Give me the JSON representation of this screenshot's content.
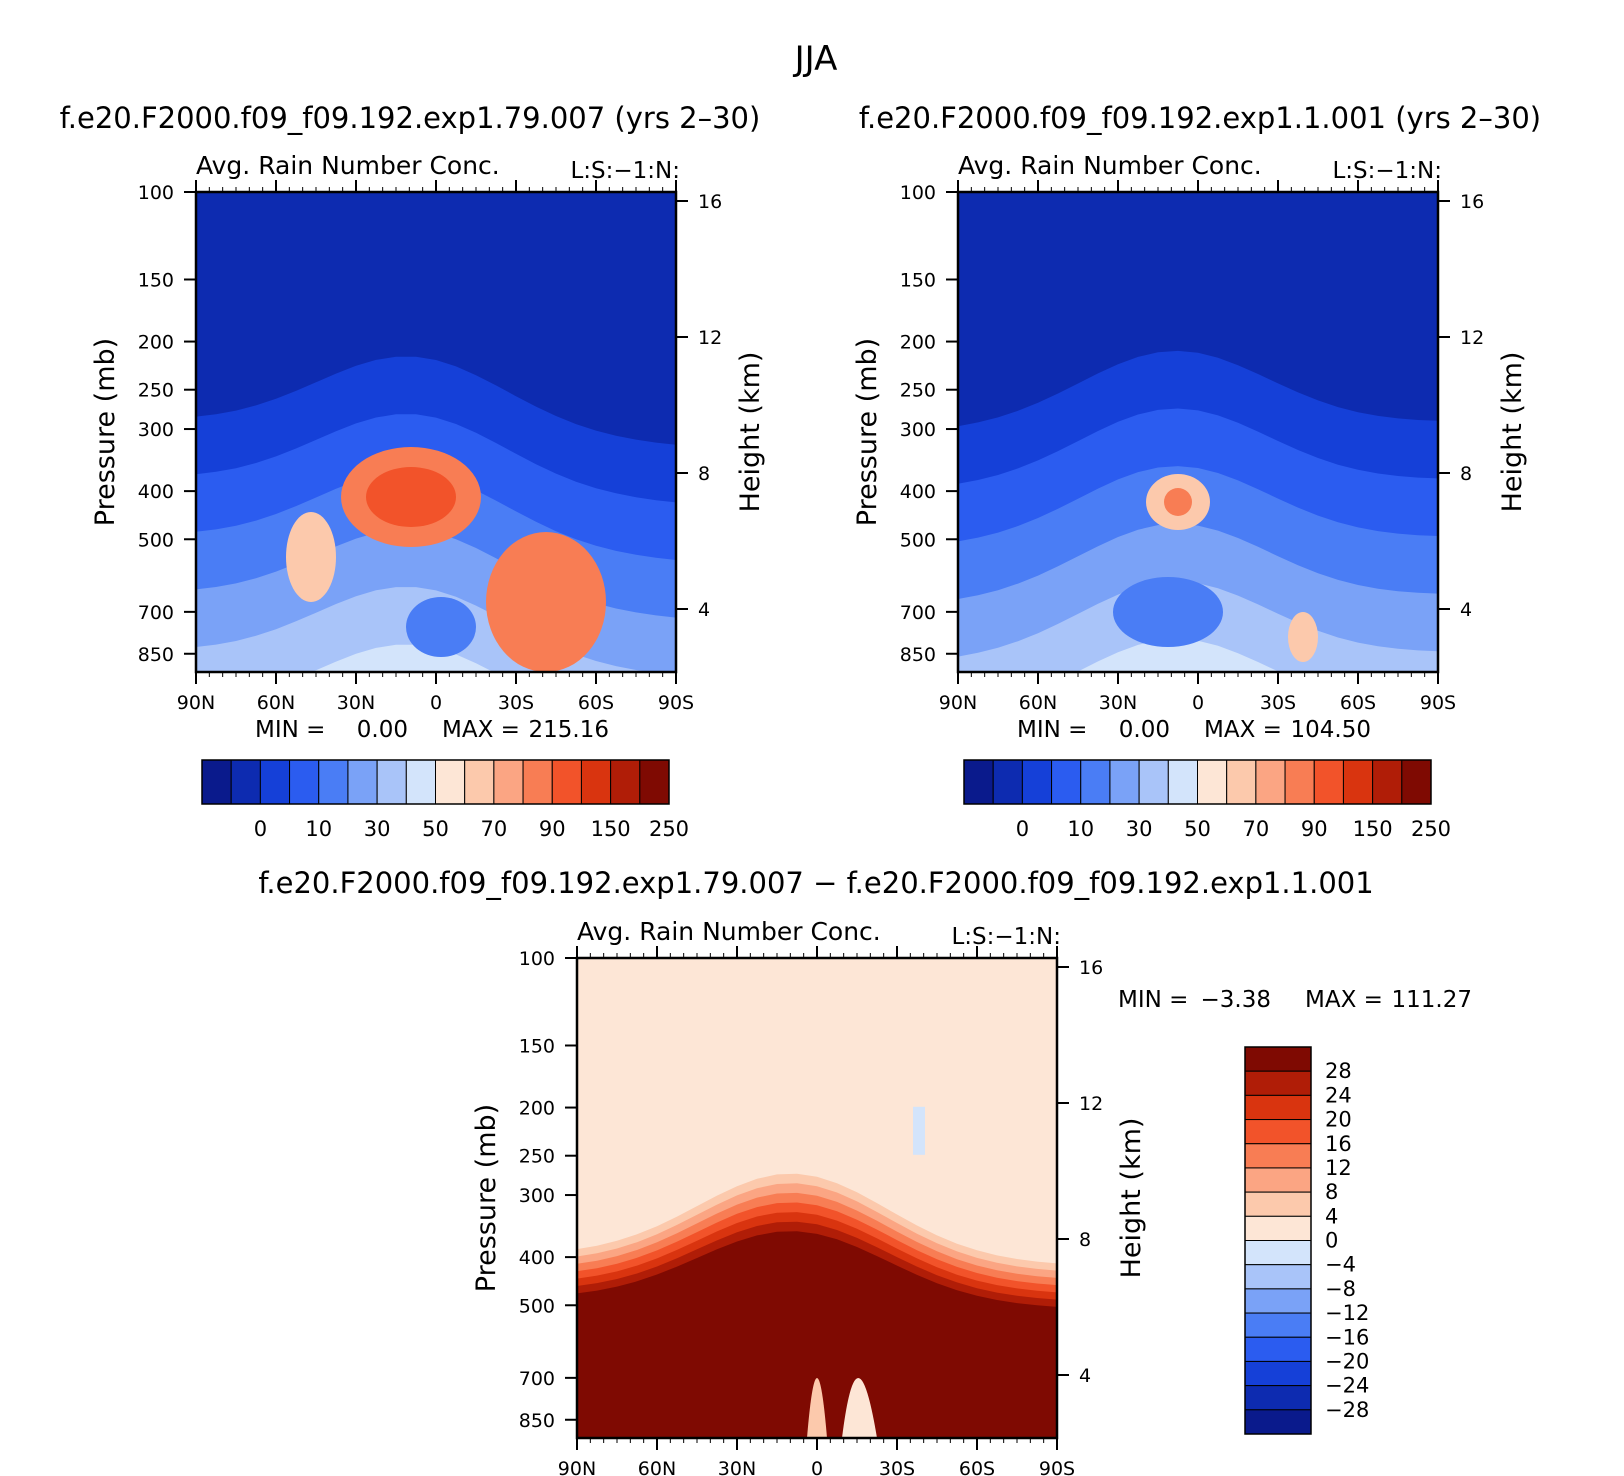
{
  "figure": {
    "title": "JJA"
  },
  "chart_data": [
    {
      "id": "left",
      "type": "heatmap",
      "case_title": "f.e20.F2000.f09_f09.192.exp1.79.007 (yrs 2–30)",
      "left_string": "Avg. Rain Number Conc.",
      "right_string": "L:S:−1:N:",
      "ylabel": "Pressure (mb)",
      "y2label": "Height (km)",
      "xticks": [
        "90N",
        "60N",
        "30N",
        "0",
        "30S",
        "60S",
        "90S"
      ],
      "yticks": [
        100,
        150,
        200,
        250,
        300,
        400,
        500,
        700,
        850
      ],
      "y2ticks": [
        16,
        12,
        8,
        4
      ],
      "min_label": "MIN =",
      "min_value": "0.00",
      "max_label": "MAX =",
      "max_value": "215.16",
      "colorbar": {
        "colors": [
          "#0a1a8c",
          "#0d2bb0",
          "#1540d8",
          "#2b5cf0",
          "#4a7df5",
          "#7aa2f7",
          "#a9c4f9",
          "#d3e4fb",
          "#fde6d6",
          "#fcc9ac",
          "#fba583",
          "#f87d54",
          "#f2532a",
          "#d9340f",
          "#b01d07",
          "#7f0a02"
        ],
        "labels": [
          "0",
          "10",
          "30",
          "50",
          "70",
          "90",
          "150",
          "250"
        ]
      }
    },
    {
      "id": "right",
      "type": "heatmap",
      "case_title": "f.e20.F2000.f09_f09.192.exp1.1.001 (yrs 2–30)",
      "left_string": "Avg. Rain Number Conc.",
      "right_string": "L:S:−1:N:",
      "ylabel": "Pressure (mb)",
      "y2label": "Height (km)",
      "xticks": [
        "90N",
        "60N",
        "30N",
        "0",
        "30S",
        "60S",
        "90S"
      ],
      "yticks": [
        100,
        150,
        200,
        250,
        300,
        400,
        500,
        700,
        850
      ],
      "y2ticks": [
        16,
        12,
        8,
        4
      ],
      "min_label": "MIN =",
      "min_value": "0.00",
      "max_label": "MAX =",
      "max_value": "104.50",
      "colorbar": {
        "colors": [
          "#0a1a8c",
          "#0d2bb0",
          "#1540d8",
          "#2b5cf0",
          "#4a7df5",
          "#7aa2f7",
          "#a9c4f9",
          "#d3e4fb",
          "#fde6d6",
          "#fcc9ac",
          "#fba583",
          "#f87d54",
          "#f2532a",
          "#d9340f",
          "#b01d07",
          "#7f0a02"
        ],
        "labels": [
          "0",
          "10",
          "30",
          "50",
          "70",
          "90",
          "150",
          "250"
        ]
      }
    },
    {
      "id": "diff",
      "type": "heatmap",
      "case_title": "f.e20.F2000.f09_f09.192.exp1.79.007 − f.e20.F2000.f09_f09.192.exp1.1.001",
      "left_string": "Avg. Rain Number Conc.",
      "right_string": "L:S:−1:N:",
      "ylabel": "Pressure (mb)",
      "y2label": "Height (km)",
      "xticks": [
        "90N",
        "60N",
        "30N",
        "0",
        "30S",
        "60S",
        "90S"
      ],
      "yticks": [
        100,
        150,
        200,
        250,
        300,
        400,
        500,
        700,
        850
      ],
      "y2ticks": [
        16,
        12,
        8,
        4
      ],
      "min_label": "MIN =",
      "min_value": "−3.38",
      "max_label": "MAX =",
      "max_value": "111.27",
      "colorbar": {
        "colors": [
          "#7f0a02",
          "#b01d07",
          "#d9340f",
          "#f2532a",
          "#f87d54",
          "#fba583",
          "#fcc9ac",
          "#fde6d6",
          "#d3e4fb",
          "#a9c4f9",
          "#7aa2f7",
          "#4a7df5",
          "#2b5cf0",
          "#1540d8",
          "#0d2bb0",
          "#0a1a8c"
        ],
        "labels": [
          "28",
          "24",
          "20",
          "16",
          "12",
          "8",
          "4",
          "0",
          "−4",
          "−8",
          "−12",
          "−16",
          "−20",
          "−24",
          "−28"
        ]
      }
    }
  ]
}
